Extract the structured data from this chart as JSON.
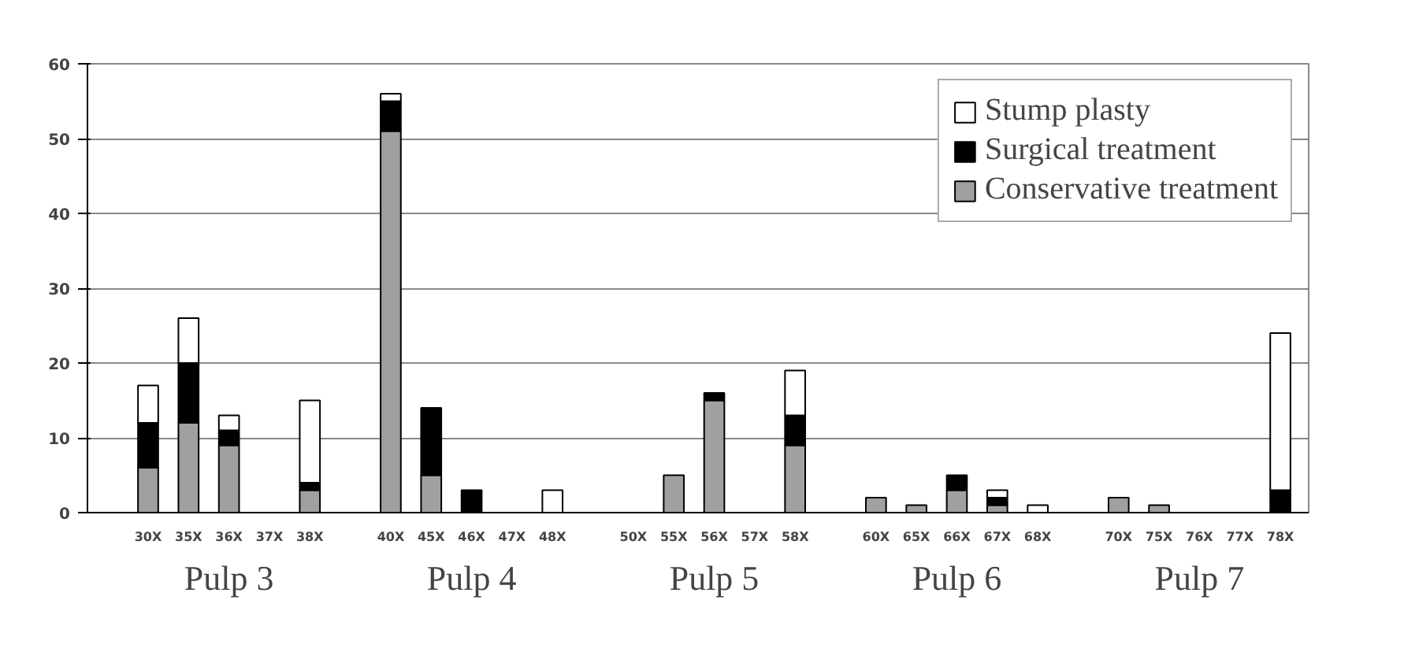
{
  "chart_data": {
    "type": "bar",
    "stacked": true,
    "categories": [
      "30X",
      "35X",
      "36X",
      "37X",
      "38X",
      null,
      "40X",
      "45X",
      "46X",
      "47X",
      "48X",
      null,
      "50X",
      "55X",
      "56X",
      "57X",
      "58X",
      null,
      "60X",
      "65X",
      "66X",
      "67X",
      "68X",
      null,
      "70X",
      "75X",
      "76X",
      "77X",
      "78X"
    ],
    "series": [
      {
        "name": "Conservative treatment",
        "color": "#a0a0a0",
        "values": [
          6,
          12,
          9,
          0,
          3,
          null,
          51,
          5,
          0,
          0,
          0,
          null,
          0,
          5,
          15,
          0,
          9,
          null,
          2,
          1,
          3,
          1,
          0,
          null,
          2,
          1,
          0,
          0,
          0
        ]
      },
      {
        "name": "Surgical treatment",
        "color": "#000000",
        "values": [
          6,
          8,
          2,
          0,
          1,
          null,
          4,
          9,
          3,
          0,
          0,
          null,
          0,
          0,
          1,
          0,
          4,
          null,
          0,
          0,
          2,
          1,
          0,
          null,
          0,
          0,
          0,
          0,
          3
        ]
      },
      {
        "name": "Stump plasty",
        "color": "#ffffff",
        "values": [
          5,
          6,
          2,
          0,
          11,
          null,
          1,
          0,
          0,
          0,
          3,
          null,
          0,
          0,
          0,
          0,
          6,
          null,
          0,
          0,
          0,
          1,
          1,
          null,
          0,
          0,
          0,
          0,
          21
        ]
      }
    ],
    "ylim": [
      0,
      60
    ],
    "yticks": [
      0,
      10,
      20,
      30,
      40,
      50,
      60
    ],
    "grid": "y",
    "legend": "top right",
    "annotations": [
      "Pulp 3",
      "Pulp 4",
      "Pulp 5",
      "Pulp 6",
      "Pulp 7"
    ]
  }
}
